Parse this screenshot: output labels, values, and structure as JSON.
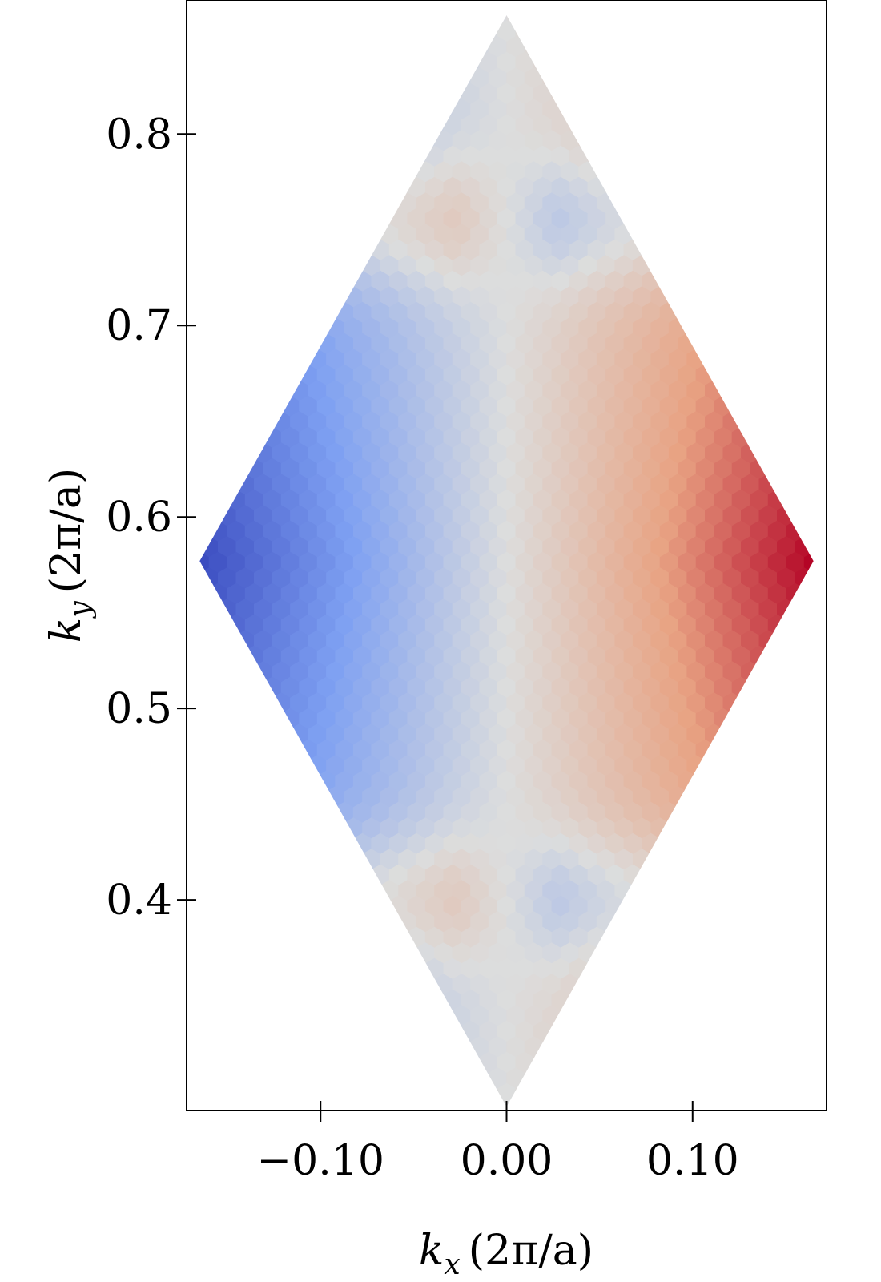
{
  "chart_data": {
    "type": "heatmap",
    "title": "",
    "xlabel": {
      "var": "k",
      "sub": "x",
      "unit": "(2π/a)"
    },
    "ylabel": {
      "var": "k",
      "sub": "y",
      "unit": "(2π/a)"
    },
    "xlim": [
      -0.172,
      0.172
    ],
    "ylim": [
      0.29,
      0.87
    ],
    "x_ticks": [
      {
        "value": -0.1,
        "label": "−0.10"
      },
      {
        "value": 0.0,
        "label": "0.00"
      },
      {
        "value": 0.1,
        "label": "0.10"
      }
    ],
    "y_ticks": [
      {
        "value": 0.4,
        "label": "0.4"
      },
      {
        "value": 0.5,
        "label": "0.5"
      },
      {
        "value": 0.6,
        "label": "0.6"
      },
      {
        "value": 0.7,
        "label": "0.7"
      },
      {
        "value": 0.8,
        "label": "0.8"
      }
    ],
    "region": {
      "shape": "rhombus",
      "vertices": [
        [
          0.0,
          0.862
        ],
        [
          0.165,
          0.577
        ],
        [
          0.0,
          0.292
        ],
        [
          -0.165,
          0.577
        ]
      ]
    },
    "cell_shape": "hexagon",
    "colormap": "coolwarm",
    "colormap_stops": [
      "#3b4cc0",
      "#7ea0f2",
      "#dcdddd",
      "#e8a383",
      "#b40426"
    ],
    "value_range": [
      -1,
      1
    ],
    "field_description": "negative (blue) for kx<0, positive (red) for kx>0, strongest at left/right vertices; secondary lobes near top and bottom vertices",
    "grid": false,
    "legend": "none"
  }
}
